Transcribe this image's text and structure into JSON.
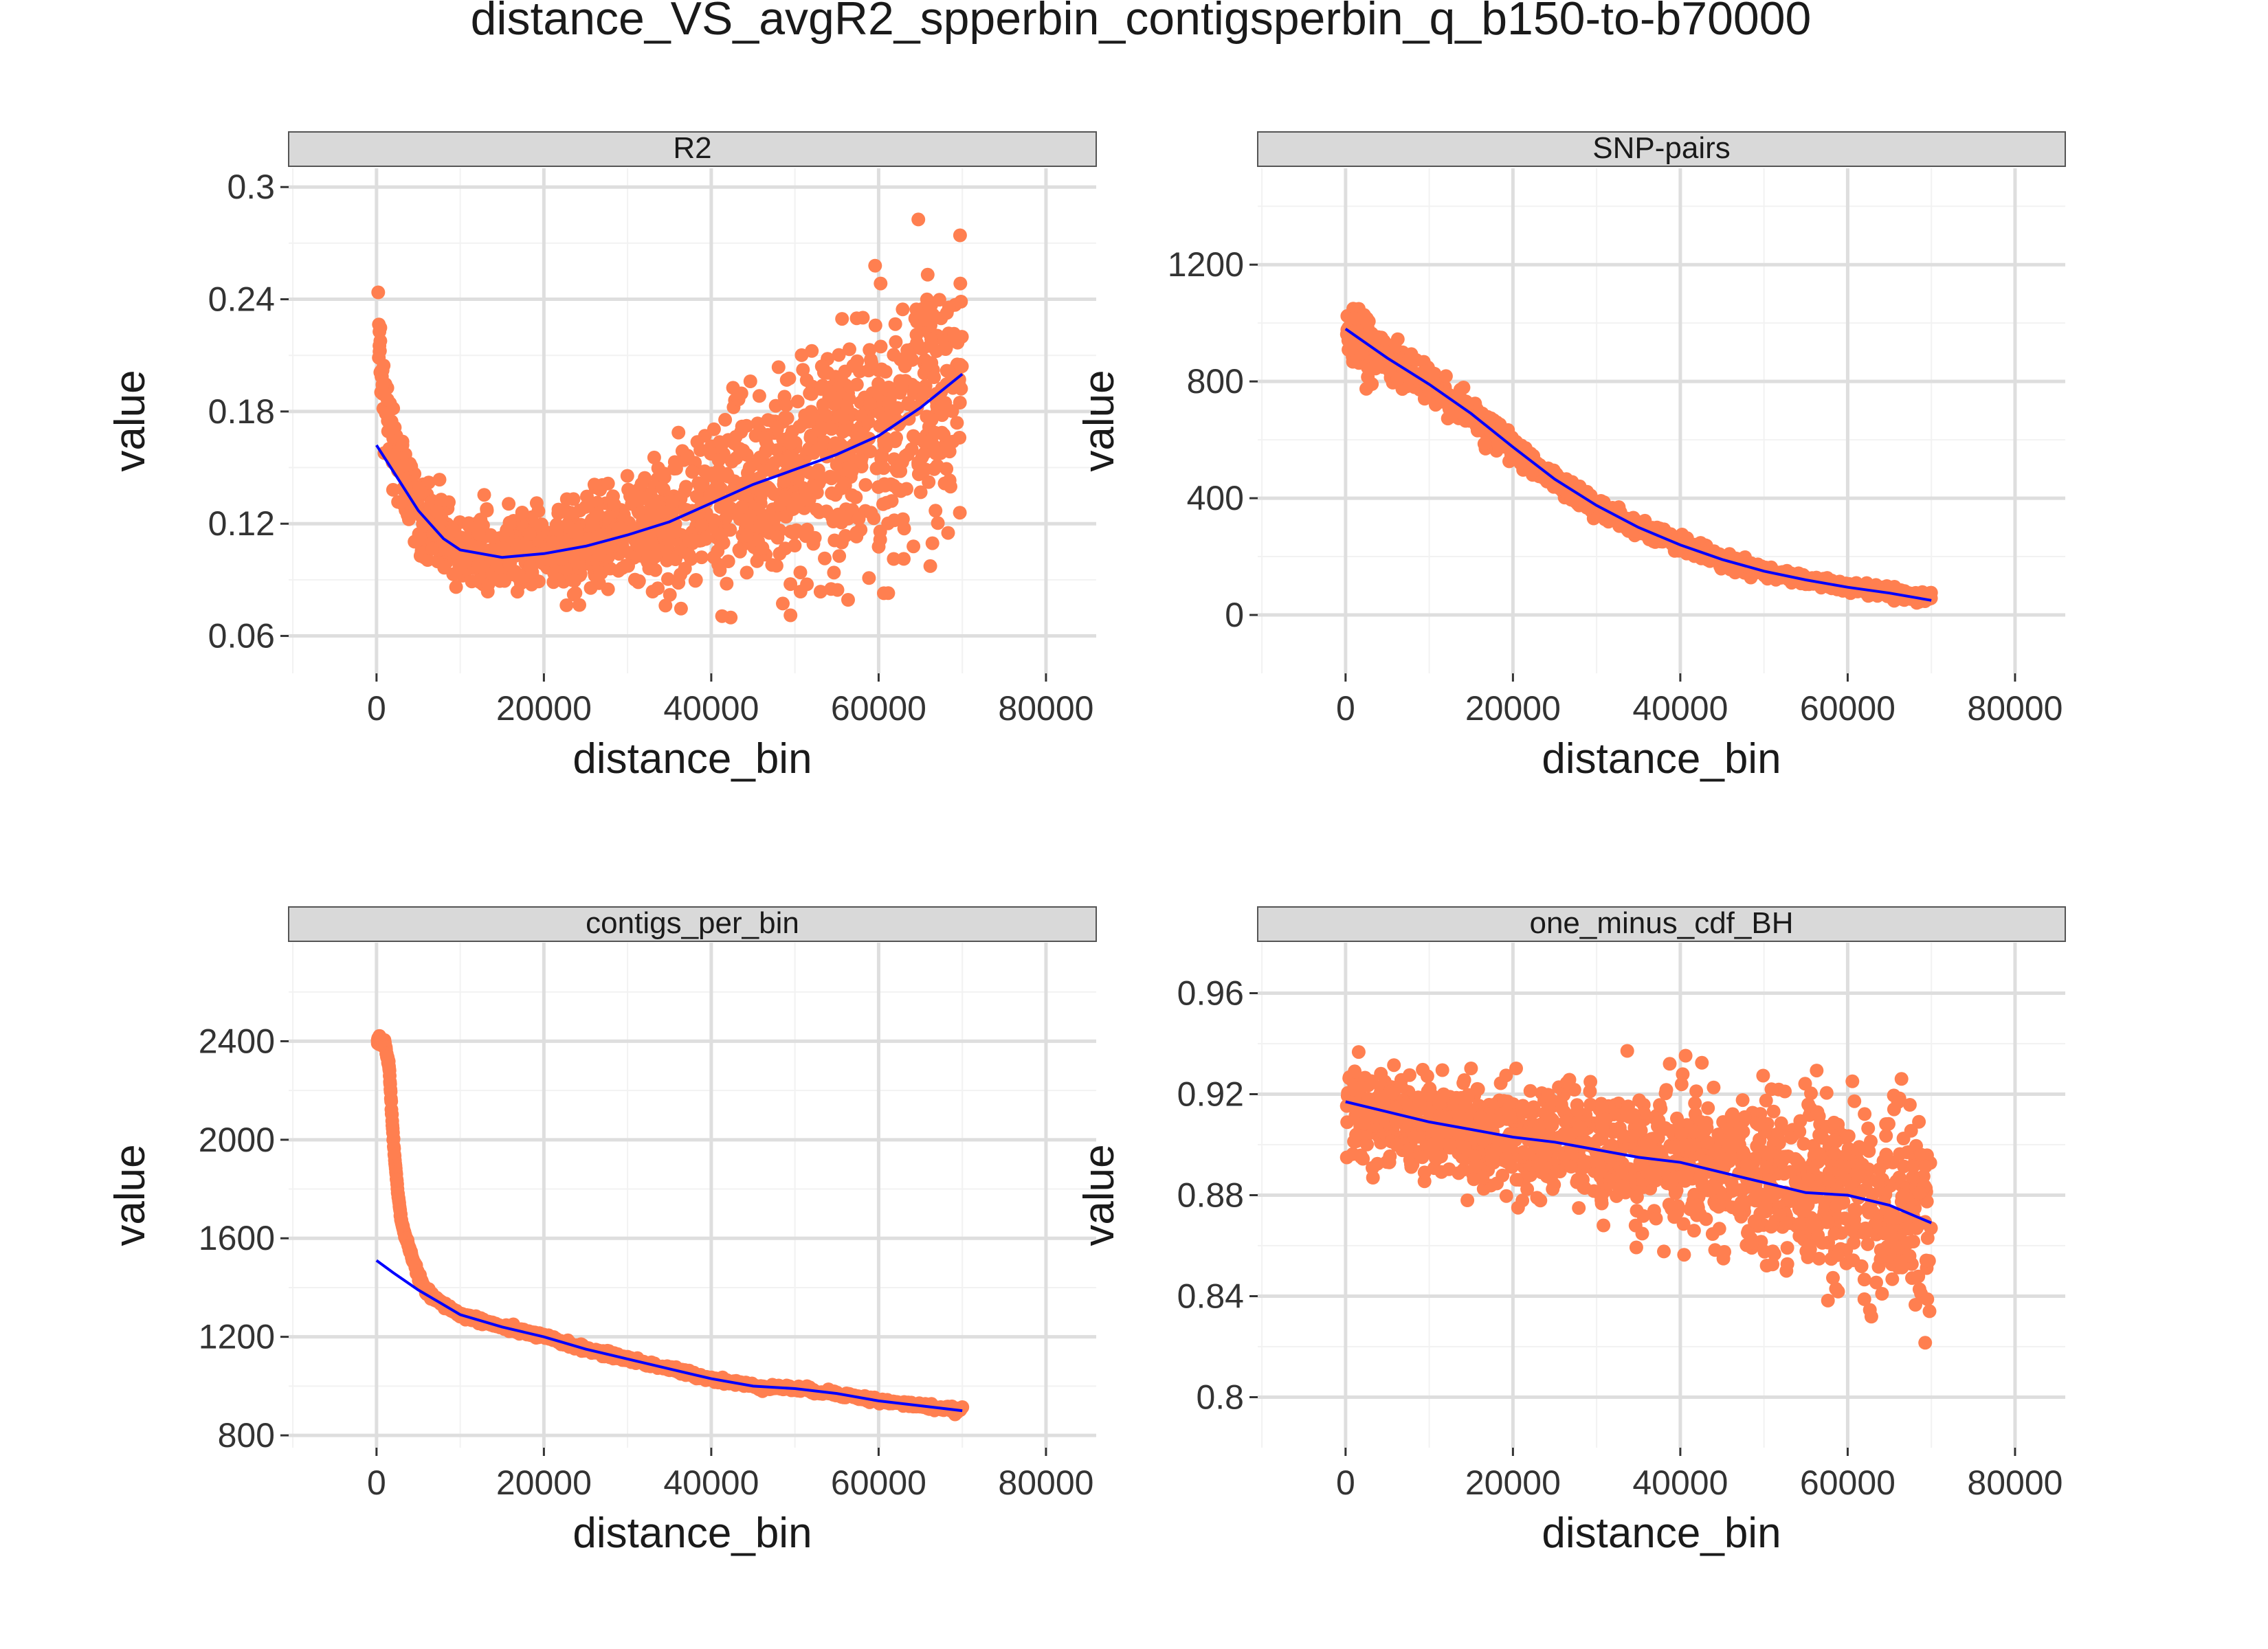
{
  "title": "distance_VS_avgR2_spperbin_contigsperbin_q_b150-to-b70000",
  "colors": {
    "point": "#FF7F50",
    "smooth": "#0000FF",
    "strip_fill": "#D9D9D9",
    "grid": "#DEDEDE"
  },
  "chart_data": [
    {
      "type": "scatter",
      "facet": "R2",
      "xlabel": "distance_bin",
      "ylabel": "value",
      "xlim": [
        -10500,
        86000
      ],
      "ylim": [
        0.04,
        0.31
      ],
      "xticks": [
        0,
        20000,
        40000,
        60000,
        80000
      ],
      "yticks": [
        0.06,
        0.12,
        0.18,
        0.24,
        0.3
      ],
      "ytick_labels": [
        "0.06",
        "0.12",
        "0.18",
        "0.24",
        "0.3"
      ],
      "grid": true,
      "series": [
        {
          "role": "points",
          "shape": "cloud",
          "x": [
            150,
            500,
            1000,
            2000,
            3000,
            5000,
            8000,
            10000,
            15000,
            20000,
            25000,
            30000,
            35000,
            40000,
            45000,
            50000,
            55000,
            60000,
            65000,
            70000
          ],
          "y": [
            0.23,
            0.205,
            0.19,
            0.165,
            0.145,
            0.125,
            0.11,
            0.105,
            0.103,
            0.105,
            0.108,
            0.113,
            0.12,
            0.13,
            0.14,
            0.148,
            0.157,
            0.168,
            0.183,
            0.2
          ],
          "spread": [
            0.006,
            0.008,
            0.01,
            0.012,
            0.012,
            0.011,
            0.01,
            0.01,
            0.01,
            0.012,
            0.013,
            0.015,
            0.018,
            0.021,
            0.024,
            0.027,
            0.03,
            0.033,
            0.035,
            0.035
          ]
        },
        {
          "role": "smooth",
          "x": [
            0,
            2000,
            5000,
            8000,
            10000,
            15000,
            20000,
            25000,
            30000,
            35000,
            40000,
            45000,
            50000,
            55000,
            60000,
            65000,
            70000
          ],
          "y": [
            0.162,
            0.148,
            0.127,
            0.112,
            0.106,
            0.102,
            0.104,
            0.108,
            0.114,
            0.121,
            0.131,
            0.141,
            0.149,
            0.157,
            0.167,
            0.182,
            0.2
          ]
        }
      ]
    },
    {
      "type": "scatter",
      "facet": "SNP-pairs",
      "xlabel": "distance_bin",
      "ylabel": "value",
      "xlim": [
        -10500,
        86000
      ],
      "ylim": [
        -200,
        1530
      ],
      "xticks": [
        0,
        20000,
        40000,
        60000,
        80000
      ],
      "yticks": [
        0,
        400,
        800,
        1200
      ],
      "ytick_labels": [
        "0",
        "400",
        "800",
        "1200"
      ],
      "grid": true,
      "series": [
        {
          "role": "points",
          "shape": "cloud",
          "x": [
            150,
            1000,
            3000,
            5000,
            10000,
            15000,
            20000,
            25000,
            30000,
            35000,
            40000,
            45000,
            50000,
            55000,
            60000,
            65000,
            70000
          ],
          "y": [
            990,
            970,
            920,
            880,
            790,
            690,
            570,
            460,
            370,
            300,
            240,
            190,
            150,
            120,
            95,
            75,
            55
          ],
          "spread": [
            60,
            55,
            45,
            40,
            30,
            25,
            20,
            18,
            15,
            13,
            12,
            11,
            10,
            9,
            9,
            9,
            10
          ]
        },
        {
          "role": "smooth",
          "x": [
            0,
            5000,
            10000,
            15000,
            20000,
            25000,
            30000,
            35000,
            40000,
            45000,
            50000,
            55000,
            60000,
            65000,
            70000
          ],
          "y": [
            980,
            880,
            790,
            690,
            575,
            465,
            375,
            300,
            240,
            190,
            150,
            120,
            95,
            75,
            50
          ]
        }
      ]
    },
    {
      "type": "scatter",
      "facet": "contigs_per_bin",
      "xlabel": "distance_bin",
      "ylabel": "value",
      "xlim": [
        -10500,
        86000
      ],
      "ylim": [
        750,
        2800
      ],
      "xticks": [
        0,
        20000,
        40000,
        60000,
        80000
      ],
      "yticks": [
        800,
        1200,
        1600,
        2000,
        2400
      ],
      "ytick_labels": [
        "800",
        "1200",
        "1600",
        "2000",
        "2400"
      ],
      "grid": true,
      "series": [
        {
          "role": "points",
          "shape": "line-of-points",
          "x": [
            150,
            500,
            1000,
            1500,
            2000,
            2500,
            3000,
            4000,
            5000,
            6000,
            8000,
            10000,
            15000,
            20000,
            25000,
            30000,
            35000,
            40000,
            45000,
            50000,
            55000,
            60000,
            65000,
            70000
          ],
          "y": [
            2400,
            2400,
            2390,
            2300,
            2000,
            1800,
            1660,
            1550,
            1450,
            1380,
            1330,
            1290,
            1240,
            1200,
            1150,
            1110,
            1070,
            1030,
            1000,
            990,
            970,
            940,
            920,
            900
          ]
        },
        {
          "role": "smooth",
          "x": [
            0,
            2000,
            5000,
            8000,
            10000,
            15000,
            20000,
            25000,
            30000,
            35000,
            40000,
            45000,
            50000,
            55000,
            60000,
            65000,
            70000
          ],
          "y": [
            1510,
            1460,
            1390,
            1330,
            1290,
            1240,
            1200,
            1150,
            1110,
            1070,
            1030,
            1000,
            990,
            970,
            940,
            920,
            900
          ]
        }
      ]
    },
    {
      "type": "scatter",
      "facet": "one_minus_cdf_BH",
      "xlabel": "distance_bin",
      "ylabel": "value",
      "xlim": [
        -10500,
        86000
      ],
      "ylim": [
        0.78,
        0.98
      ],
      "xticks": [
        0,
        20000,
        40000,
        60000,
        80000
      ],
      "yticks": [
        0.8,
        0.84,
        0.88,
        0.92,
        0.96
      ],
      "ytick_labels": [
        "0.8",
        "0.84",
        "0.88",
        "0.92",
        "0.96"
      ],
      "grid": true,
      "series": [
        {
          "role": "points",
          "shape": "cloud",
          "x": [
            150,
            5000,
            10000,
            15000,
            20000,
            25000,
            30000,
            35000,
            40000,
            45000,
            50000,
            55000,
            60000,
            65000,
            70000
          ],
          "y": [
            0.915,
            0.912,
            0.909,
            0.906,
            0.903,
            0.901,
            0.898,
            0.896,
            0.893,
            0.89,
            0.886,
            0.882,
            0.879,
            0.875,
            0.87
          ],
          "spread": [
            0.008,
            0.009,
            0.009,
            0.01,
            0.01,
            0.011,
            0.012,
            0.013,
            0.014,
            0.015,
            0.016,
            0.017,
            0.018,
            0.019,
            0.02
          ]
        },
        {
          "role": "smooth",
          "x": [
            0,
            5000,
            10000,
            15000,
            20000,
            25000,
            30000,
            35000,
            40000,
            45000,
            50000,
            55000,
            60000,
            65000,
            70000
          ],
          "y": [
            0.917,
            0.913,
            0.909,
            0.906,
            0.903,
            0.901,
            0.898,
            0.895,
            0.893,
            0.889,
            0.885,
            0.881,
            0.88,
            0.876,
            0.869
          ]
        }
      ]
    }
  ]
}
